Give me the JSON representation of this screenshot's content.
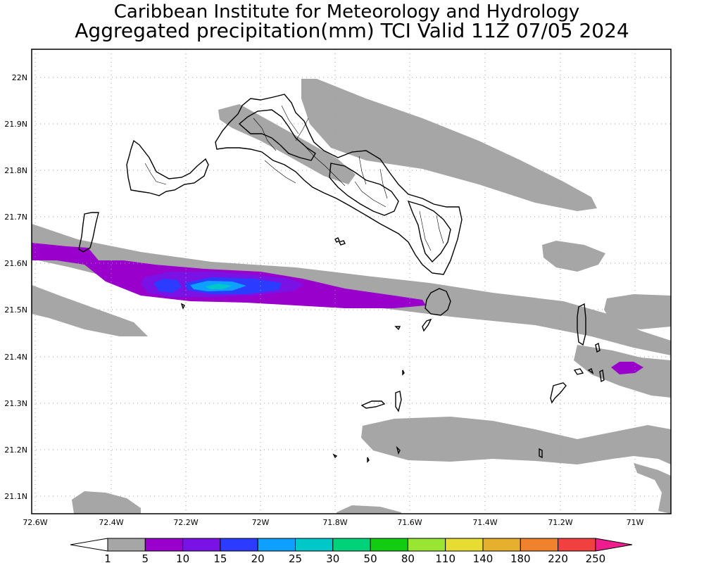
{
  "header": {
    "institute": "Caribbean Institute for Meteorology and Hydrology",
    "product": "Aggregated precipitation(mm) TCI Valid 11Z 07/05 2024"
  },
  "map": {
    "region": "Turks and Caicos Islands",
    "lat_labels": [
      "22N",
      "21.9N",
      "21.8N",
      "21.7N",
      "21.6N",
      "21.5N",
      "21.4N",
      "21.3N",
      "21.2N",
      "21.1N"
    ],
    "lon_labels": [
      "72.6W",
      "72.4W",
      "72.2W",
      "72W",
      "71.8W",
      "71.6W",
      "71.4W",
      "71.2W",
      "71W"
    ],
    "grid": "dotted"
  },
  "colorbar": {
    "labels": [
      "1",
      "5",
      "10",
      "15",
      "20",
      "25",
      "30",
      "50",
      "80",
      "110",
      "140",
      "180",
      "220",
      "250"
    ],
    "colors": [
      "#a6a6a6",
      "#9900cc",
      "#7a12e6",
      "#2b3bff",
      "#0ea0ff",
      "#00c8c8",
      "#00d27a",
      "#11cc11",
      "#99e632",
      "#e6dc32",
      "#e6af2d",
      "#f0822d",
      "#f04040",
      "#ee1c8c"
    ]
  }
}
